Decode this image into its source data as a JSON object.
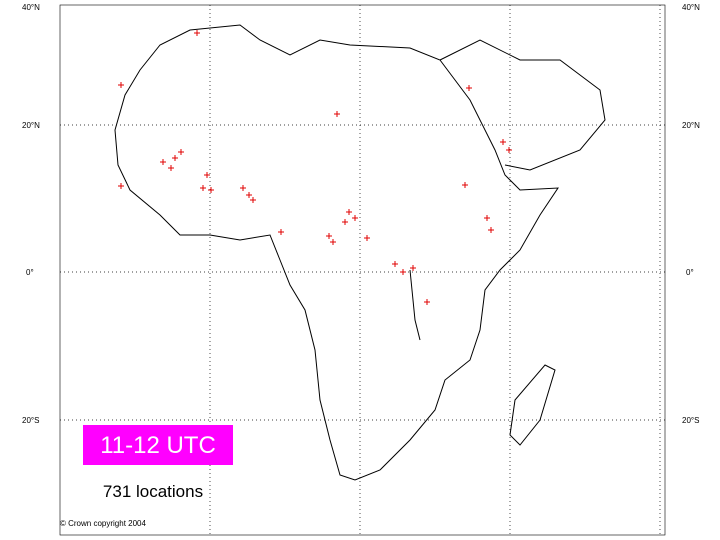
{
  "map": {
    "lat_labels_left": [
      "40°N",
      "20°N",
      "0°",
      "20°S"
    ],
    "lat_labels_right": [
      "40°N",
      "20°N",
      "0°",
      "20°S"
    ],
    "time_label": "11-12 UTC",
    "count_label": "731 locations",
    "copyright": "© Crown copyright 2004"
  }
}
